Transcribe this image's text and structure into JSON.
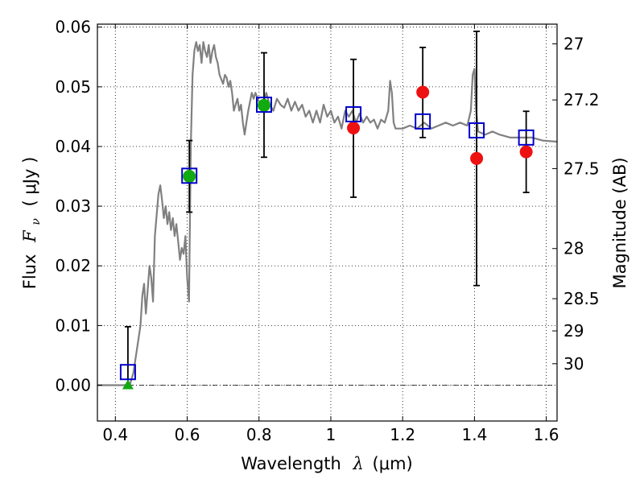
{
  "chart_data": {
    "type": "scatter",
    "xlim": [
      0.35,
      1.63
    ],
    "ylim": [
      -0.006,
      0.0605
    ],
    "grid": true,
    "x_ticks": [
      {
        "value": 0.4,
        "label": "0.4"
      },
      {
        "value": 0.6,
        "label": "0.6"
      },
      {
        "value": 0.8,
        "label": "0.8"
      },
      {
        "value": 1.0,
        "label": "1"
      },
      {
        "value": 1.2,
        "label": "1.2"
      },
      {
        "value": 1.4,
        "label": "1.4"
      },
      {
        "value": 1.6,
        "label": "1.6"
      }
    ],
    "y_ticks": [
      {
        "value": 0.0,
        "label": "0.00"
      },
      {
        "value": 0.01,
        "label": "0.01"
      },
      {
        "value": 0.02,
        "label": "0.02"
      },
      {
        "value": 0.03,
        "label": "0.03"
      },
      {
        "value": 0.04,
        "label": "0.04"
      },
      {
        "value": 0.05,
        "label": "0.05"
      },
      {
        "value": 0.06,
        "label": "0.06"
      }
    ],
    "right_axis_ticks": [
      {
        "flux": 0.0572,
        "label": "27"
      },
      {
        "flux": 0.0478,
        "label": "27.2"
      },
      {
        "flux": 0.0363,
        "label": "27.5"
      },
      {
        "flux": 0.0229,
        "label": "28"
      },
      {
        "flux": 0.0145,
        "label": "28.5"
      },
      {
        "flux": 0.0091,
        "label": "29"
      },
      {
        "flux": 0.0036,
        "label": "30"
      }
    ],
    "xlabel_prefix": "Wavelength",
    "xlabel_var": "λ",
    "xlabel_unit": "(μm)",
    "ylabel_prefix": "Flux",
    "ylabel_var": "F",
    "ylabel_sub": "ν",
    "ylabel_unit": "( μJy )",
    "right_label": "Magnitude (AB)",
    "colors": {
      "sed": "#808080",
      "model_box": "#0000cc",
      "observed_red": "#ee1111",
      "observed_green": "#11aa11",
      "errorbar": "#000000",
      "grid": "#000000"
    },
    "sed_model": [
      [
        0.35,
        0.0
      ],
      [
        0.44,
        0.0
      ],
      [
        0.45,
        0.002
      ],
      [
        0.46,
        0.006
      ],
      [
        0.47,
        0.01
      ],
      [
        0.475,
        0.015
      ],
      [
        0.48,
        0.017
      ],
      [
        0.485,
        0.012
      ],
      [
        0.49,
        0.016
      ],
      [
        0.495,
        0.02
      ],
      [
        0.5,
        0.018
      ],
      [
        0.505,
        0.014
      ],
      [
        0.51,
        0.025
      ],
      [
        0.52,
        0.032
      ],
      [
        0.525,
        0.0335
      ],
      [
        0.53,
        0.031
      ],
      [
        0.535,
        0.028
      ],
      [
        0.54,
        0.03
      ],
      [
        0.545,
        0.027
      ],
      [
        0.55,
        0.029
      ],
      [
        0.555,
        0.026
      ],
      [
        0.56,
        0.028
      ],
      [
        0.565,
        0.025
      ],
      [
        0.57,
        0.027
      ],
      [
        0.575,
        0.024
      ],
      [
        0.58,
        0.021
      ],
      [
        0.585,
        0.023
      ],
      [
        0.59,
        0.022
      ],
      [
        0.595,
        0.025
      ],
      [
        0.6,
        0.018
      ],
      [
        0.605,
        0.014
      ],
      [
        0.61,
        0.04
      ],
      [
        0.615,
        0.052
      ],
      [
        0.62,
        0.056
      ],
      [
        0.625,
        0.0575
      ],
      [
        0.63,
        0.056
      ],
      [
        0.635,
        0.057
      ],
      [
        0.64,
        0.054
      ],
      [
        0.645,
        0.0575
      ],
      [
        0.65,
        0.056
      ],
      [
        0.655,
        0.055
      ],
      [
        0.66,
        0.057
      ],
      [
        0.665,
        0.054
      ],
      [
        0.67,
        0.056
      ],
      [
        0.675,
        0.057
      ],
      [
        0.68,
        0.055
      ],
      [
        0.685,
        0.054
      ],
      [
        0.69,
        0.052
      ],
      [
        0.7,
        0.0505
      ],
      [
        0.705,
        0.052
      ],
      [
        0.71,
        0.0515
      ],
      [
        0.715,
        0.05
      ],
      [
        0.72,
        0.051
      ],
      [
        0.725,
        0.049
      ],
      [
        0.73,
        0.046
      ],
      [
        0.735,
        0.047
      ],
      [
        0.74,
        0.048
      ],
      [
        0.745,
        0.046
      ],
      [
        0.75,
        0.047
      ],
      [
        0.755,
        0.044
      ],
      [
        0.76,
        0.042
      ],
      [
        0.765,
        0.044
      ],
      [
        0.77,
        0.046
      ],
      [
        0.78,
        0.049
      ],
      [
        0.785,
        0.048
      ],
      [
        0.79,
        0.049
      ],
      [
        0.8,
        0.0475
      ],
      [
        0.81,
        0.047
      ],
      [
        0.82,
        0.049
      ],
      [
        0.83,
        0.047
      ],
      [
        0.84,
        0.046
      ],
      [
        0.85,
        0.048
      ],
      [
        0.86,
        0.047
      ],
      [
        0.87,
        0.0465
      ],
      [
        0.88,
        0.048
      ],
      [
        0.89,
        0.046
      ],
      [
        0.9,
        0.0475
      ],
      [
        0.91,
        0.046
      ],
      [
        0.92,
        0.047
      ],
      [
        0.93,
        0.045
      ],
      [
        0.94,
        0.046
      ],
      [
        0.95,
        0.044
      ],
      [
        0.96,
        0.046
      ],
      [
        0.97,
        0.044
      ],
      [
        0.98,
        0.047
      ],
      [
        0.99,
        0.045
      ],
      [
        1.0,
        0.046
      ],
      [
        1.01,
        0.044
      ],
      [
        1.02,
        0.045
      ],
      [
        1.03,
        0.043
      ],
      [
        1.04,
        0.046
      ],
      [
        1.05,
        0.045
      ],
      [
        1.06,
        0.046
      ],
      [
        1.07,
        0.044
      ],
      [
        1.08,
        0.0455
      ],
      [
        1.09,
        0.044
      ],
      [
        1.1,
        0.045
      ],
      [
        1.11,
        0.044
      ],
      [
        1.12,
        0.0445
      ],
      [
        1.13,
        0.043
      ],
      [
        1.14,
        0.0445
      ],
      [
        1.15,
        0.044
      ],
      [
        1.16,
        0.046
      ],
      [
        1.165,
        0.051
      ],
      [
        1.17,
        0.049
      ],
      [
        1.175,
        0.044
      ],
      [
        1.18,
        0.043
      ],
      [
        1.2,
        0.043
      ],
      [
        1.22,
        0.0435
      ],
      [
        1.24,
        0.043
      ],
      [
        1.26,
        0.044
      ],
      [
        1.28,
        0.043
      ],
      [
        1.3,
        0.0435
      ],
      [
        1.32,
        0.044
      ],
      [
        1.34,
        0.0435
      ],
      [
        1.36,
        0.044
      ],
      [
        1.38,
        0.0435
      ],
      [
        1.39,
        0.046
      ],
      [
        1.395,
        0.052
      ],
      [
        1.4,
        0.053
      ],
      [
        1.405,
        0.046
      ],
      [
        1.41,
        0.0425
      ],
      [
        1.43,
        0.042
      ],
      [
        1.45,
        0.0425
      ],
      [
        1.47,
        0.042
      ],
      [
        1.5,
        0.0415
      ],
      [
        1.53,
        0.0415
      ],
      [
        1.56,
        0.0415
      ],
      [
        1.59,
        0.041
      ],
      [
        1.63,
        0.0408
      ]
    ],
    "model_photometry": [
      {
        "x": 0.435,
        "y": 0.0022
      },
      {
        "x": 0.606,
        "y": 0.0351
      },
      {
        "x": 0.814,
        "y": 0.047
      },
      {
        "x": 1.063,
        "y": 0.0454
      },
      {
        "x": 1.256,
        "y": 0.0442
      },
      {
        "x": 1.406,
        "y": 0.0427
      },
      {
        "x": 1.544,
        "y": 0.0415
      }
    ],
    "observed": [
      {
        "x": 0.435,
        "y": 0.0,
        "err_low": 0.0,
        "err_high": 0.0098,
        "color": "green",
        "marker": "triangle"
      },
      {
        "x": 0.606,
        "y": 0.035,
        "err_low": 0.006,
        "err_high": 0.006,
        "color": "green",
        "marker": "circle"
      },
      {
        "x": 0.814,
        "y": 0.0469,
        "err_low": 0.0087,
        "err_high": 0.0088,
        "color": "green",
        "marker": "circle"
      },
      {
        "x": 1.063,
        "y": 0.0431,
        "err_low": 0.0116,
        "err_high": 0.0115,
        "color": "red",
        "marker": "circle"
      },
      {
        "x": 1.256,
        "y": 0.0491,
        "err_low": 0.0076,
        "err_high": 0.0075,
        "color": "red",
        "marker": "circle"
      },
      {
        "x": 1.406,
        "y": 0.038,
        "err_low": 0.0213,
        "err_high": 0.0213,
        "color": "red",
        "marker": "circle"
      },
      {
        "x": 1.544,
        "y": 0.0391,
        "err_low": 0.0068,
        "err_high": 0.0068,
        "color": "red",
        "marker": "circle"
      }
    ]
  }
}
